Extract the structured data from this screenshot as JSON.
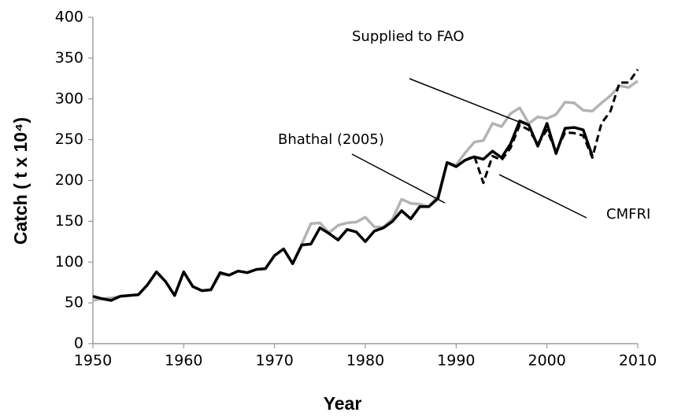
{
  "chart_data": {
    "type": "line",
    "x_label": "Year",
    "y_label": "Catch ( t x 10⁴)",
    "x": [
      1950,
      1951,
      1952,
      1953,
      1954,
      1955,
      1956,
      1957,
      1958,
      1959,
      1960,
      1961,
      1962,
      1963,
      1964,
      1965,
      1966,
      1967,
      1968,
      1969,
      1970,
      1971,
      1972,
      1973,
      1974,
      1975,
      1976,
      1977,
      1978,
      1979,
      1980,
      1981,
      1982,
      1983,
      1984,
      1985,
      1986,
      1987,
      1988,
      1989,
      1990,
      1991,
      1992,
      1993,
      1994,
      1995,
      1996,
      1997,
      1998,
      1999,
      2000,
      2001,
      2002,
      2003,
      2004,
      2005,
      2006,
      2007,
      2008,
      2009,
      2010
    ],
    "series": [
      {
        "name": "Bhathal (2005)",
        "color": "#000000",
        "dash": false,
        "values": [
          58,
          55,
          53,
          58,
          59,
          60,
          72,
          88,
          76,
          59,
          88,
          70,
          65,
          66,
          87,
          84,
          89,
          87,
          91,
          92,
          108,
          116,
          98,
          121,
          122,
          142,
          135,
          127,
          140,
          137,
          125,
          138,
          142,
          150,
          163,
          153,
          168,
          168,
          178,
          222,
          217,
          225,
          229,
          226,
          236,
          228,
          245,
          273,
          268,
          242,
          270,
          233,
          264,
          265,
          262,
          230,
          null,
          null,
          null,
          null,
          null
        ]
      },
      {
        "name": "CMFRI",
        "color": "#000000",
        "dash": true,
        "values": [
          null,
          null,
          null,
          null,
          null,
          null,
          null,
          null,
          null,
          null,
          null,
          null,
          null,
          null,
          null,
          null,
          null,
          null,
          null,
          null,
          null,
          null,
          null,
          null,
          null,
          null,
          null,
          null,
          null,
          null,
          null,
          null,
          null,
          null,
          null,
          null,
          null,
          null,
          null,
          null,
          217,
          225,
          230,
          197,
          230,
          225,
          240,
          268,
          262,
          245,
          262,
          235,
          259,
          258,
          255,
          228,
          270,
          285,
          320,
          320,
          336
        ]
      },
      {
        "name": "Supplied to FAO",
        "color": "#b3b3b3",
        "dash": false,
        "values": [
          53,
          55,
          56,
          58,
          59,
          60,
          72,
          88,
          76,
          59,
          88,
          70,
          65,
          66,
          85,
          84,
          89,
          87,
          91,
          92,
          108,
          116,
          98,
          122,
          147,
          148,
          136,
          145,
          148,
          149,
          155,
          143,
          143,
          153,
          177,
          172,
          171,
          168,
          181,
          222,
          219,
          234,
          247,
          249,
          270,
          266,
          282,
          289,
          270,
          278,
          276,
          281,
          296,
          295,
          286,
          285,
          295,
          304,
          316,
          314,
          322
        ]
      }
    ],
    "xlim": [
      1950,
      2010
    ],
    "xticks": [
      1950,
      1960,
      1970,
      1980,
      1990,
      2000,
      2010
    ],
    "ylim": [
      0,
      400
    ],
    "yticks": [
      0,
      50,
      100,
      150,
      200,
      250,
      300,
      350,
      400
    ]
  }
}
